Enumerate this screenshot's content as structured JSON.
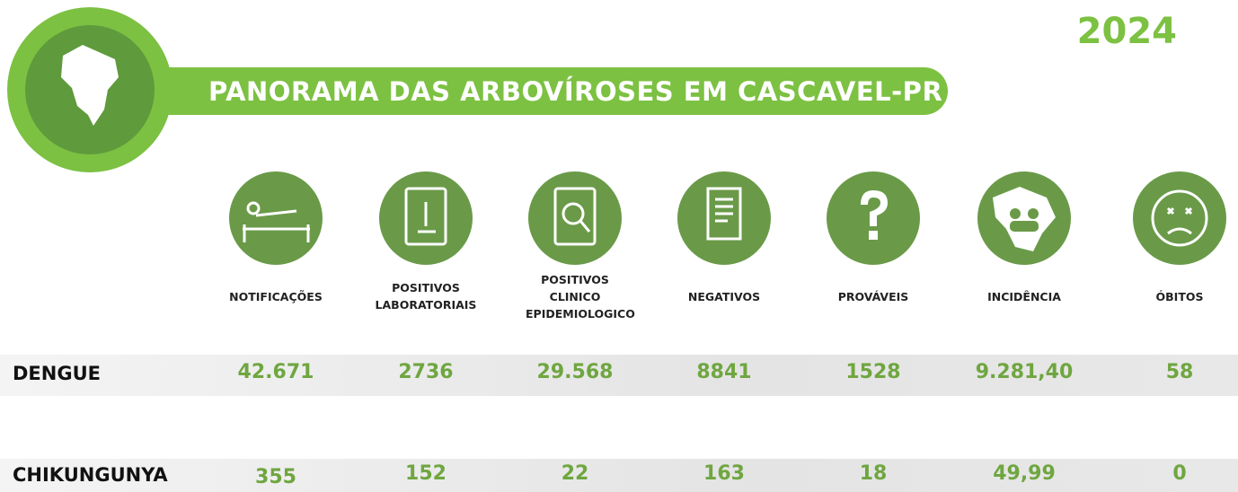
{
  "header": {
    "title": "PANORAMA DAS ARBOVÍROSES EM CASCAVEL-PR",
    "year": "2024"
  },
  "table": {
    "columns": [
      "NOTIFICAÇÕES",
      "POSITIVOS LABORATORIAIS",
      "POSITIVOS CLINICO EPIDEMIOLOGICO",
      "NEGATIVOS",
      "PROVÁVEIS",
      "INCIDÊNCIA",
      "ÓBITOS"
    ],
    "rows": [
      {
        "label": "DENGUE",
        "cells": [
          "42.671",
          "2736",
          "29.568",
          "8841",
          "1528",
          "9.281,40",
          "58"
        ]
      },
      {
        "label": "CHIKUNGUNYA",
        "cells": [
          "355",
          "152",
          "22",
          "163",
          "18",
          "49,99",
          "0"
        ]
      }
    ]
  }
}
